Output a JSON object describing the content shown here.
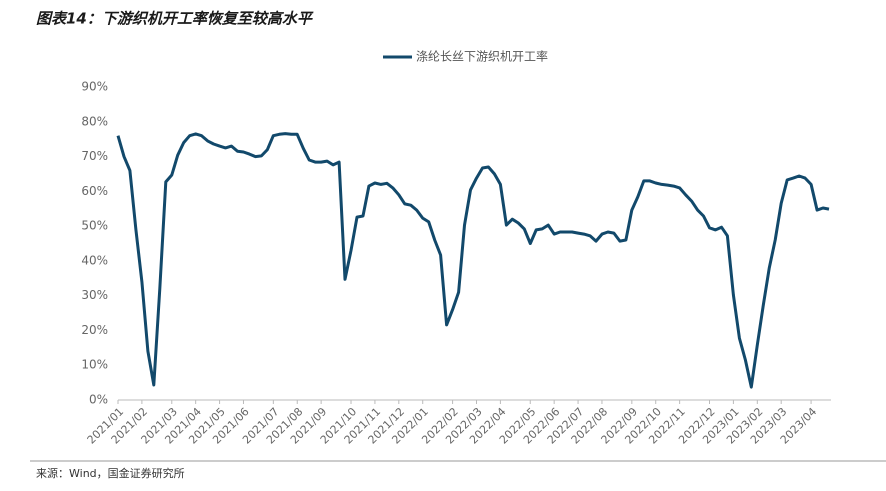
{
  "title": "图表14：下游织机开工率恢复至较高水平",
  "source": "来源：Wind，国金证券研究所",
  "chart_data": {
    "type": "line",
    "categories": [
      "2021/01",
      null,
      null,
      null,
      "2021/02",
      null,
      null,
      null,
      null,
      "2021/03",
      null,
      null,
      null,
      "2021/04",
      null,
      null,
      null,
      "2021/05",
      null,
      null,
      null,
      "2021/06",
      null,
      null,
      null,
      null,
      "2021/07",
      null,
      null,
      null,
      "2021/08",
      null,
      null,
      null,
      "2021/09",
      null,
      null,
      null,
      null,
      "2021/10",
      null,
      null,
      null,
      "2021/11",
      null,
      null,
      null,
      "2021/12",
      null,
      null,
      null,
      "2022/01",
      null,
      null,
      null,
      null,
      "2022/02",
      null,
      null,
      null,
      "2022/03",
      null,
      null,
      null,
      "2022/04",
      null,
      null,
      null,
      null,
      "2022/05",
      null,
      null,
      null,
      "2022/06",
      null,
      null,
      null,
      "2022/07",
      null,
      null,
      null,
      "2022/08",
      null,
      null,
      null,
      null,
      "2022/09",
      null,
      null,
      null,
      "2022/10",
      null,
      null,
      null,
      "2022/11",
      null,
      null,
      null,
      null,
      "2022/12",
      null,
      null,
      null,
      "2023/01",
      null,
      null,
      null,
      "2023/02",
      null,
      null,
      null,
      "2023/03",
      null,
      null,
      null,
      null,
      "2023/04",
      null,
      null,
      null
    ],
    "series": [
      {
        "name": "涤纶长丝下游织机开工率",
        "color": "#12496b",
        "values": [
          76,
          70,
          66,
          49,
          34,
          14,
          4.3,
          32,
          62.7,
          64.7,
          70.4,
          74,
          76,
          76.5,
          76,
          74.5,
          73.6,
          73,
          72.5,
          73,
          71.5,
          71.3,
          70.7,
          70,
          70.2,
          72,
          76,
          76.4,
          76.6,
          76.4,
          76.4,
          72.4,
          69,
          68.4,
          68.4,
          68.7,
          67.6,
          68.4,
          34.7,
          43,
          52.6,
          52.9,
          61.5,
          62.4,
          62,
          62.3,
          61,
          59,
          56.4,
          56,
          54.6,
          52.3,
          51.2,
          46,
          41.7,
          21.6,
          26,
          31,
          50.3,
          60.4,
          63.8,
          66.7,
          67,
          65,
          62,
          50.3,
          52,
          50.9,
          49.2,
          45,
          48.9,
          49.2,
          50.3,
          47.7,
          48.3,
          48.3,
          48.3,
          48,
          47.7,
          47.2,
          45.7,
          47.7,
          48.3,
          48,
          45.7,
          46,
          54.6,
          58.4,
          63,
          63,
          62.4,
          62,
          61.8,
          61.5,
          61,
          59,
          57.2,
          54.6,
          52.9,
          49.5,
          48.9,
          49.7,
          47.2,
          30.2,
          17.8,
          11.5,
          3.7,
          15.8,
          27.3,
          38,
          46,
          56.6,
          63.3,
          63.8,
          64.4,
          63.8,
          62,
          54.6,
          55.2,
          54.9
        ]
      }
    ],
    "ylim": [
      0,
      90
    ],
    "yticks": [
      {
        "value": 0,
        "label": "0%"
      },
      {
        "value": 10,
        "label": "10%"
      },
      {
        "value": 20,
        "label": "20%"
      },
      {
        "value": 30,
        "label": "30%"
      },
      {
        "value": 40,
        "label": "40%"
      },
      {
        "value": 50,
        "label": "50%"
      },
      {
        "value": 60,
        "label": "60%"
      },
      {
        "value": 70,
        "label": "70%"
      },
      {
        "value": 80,
        "label": "80%"
      },
      {
        "value": 90,
        "label": "90%"
      }
    ],
    "grid": false,
    "legend": "top"
  }
}
